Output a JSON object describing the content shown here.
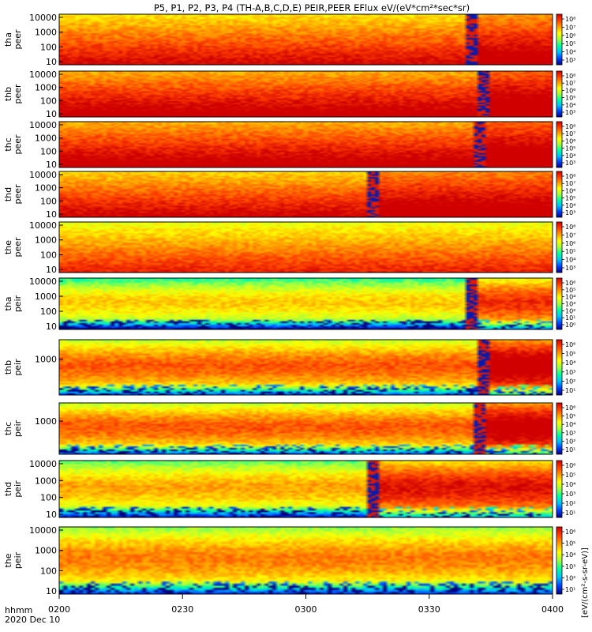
{
  "chart_data": {
    "type": "heatmap",
    "title": "P5, P1, P2, P3, P4 (TH-A,B,C,D,E) PEIR,PEER EFlux eV/(eV*cm²*sec*sr)",
    "xlabel": "hhmm",
    "date_label": "2020 Dec 10",
    "x_ticks": [
      "0200",
      "0230",
      "0300",
      "0330",
      "0400"
    ],
    "x_range_minutes": [
      0,
      120
    ],
    "colorbar_label": "[eV/(cm²-s-sr-eV)]",
    "colorscale": [
      "#000080",
      "#0040ff",
      "#00c0ff",
      "#00ffa0",
      "#a0ff40",
      "#ffff00",
      "#ffa000",
      "#ff4000",
      "#d00000"
    ],
    "panels": [
      {
        "probe": "tha",
        "instrument": "peer",
        "ylabel": "tha\npeer",
        "y_ticks": [
          "10000",
          "1000",
          "100",
          "10"
        ],
        "cbar_ticks": [
          "10⁸",
          "10⁷",
          "10⁶",
          "10⁵",
          "10⁴",
          "10³"
        ],
        "flux_level": 0.78,
        "transition_minute": 100
      },
      {
        "probe": "thb",
        "instrument": "peer",
        "ylabel": "thb\npeer",
        "y_ticks": [
          "10000",
          "1000",
          "100",
          "10"
        ],
        "cbar_ticks": [
          "10⁸",
          "10⁷",
          "10⁶",
          "10⁵",
          "10⁴",
          "10³"
        ],
        "flux_level": 0.85,
        "transition_minute": 103
      },
      {
        "probe": "thc",
        "instrument": "peer",
        "ylabel": "thc\npeer",
        "y_ticks": [
          "10000",
          "1000",
          "100",
          "10"
        ],
        "cbar_ticks": [
          "10⁸",
          "10⁷",
          "10⁶",
          "10⁵",
          "10⁴",
          "10³"
        ],
        "flux_level": 0.85,
        "transition_minute": 102
      },
      {
        "probe": "thd",
        "instrument": "peer",
        "ylabel": "thd\npeer",
        "y_ticks": [
          "10000",
          "1000",
          "100",
          "10"
        ],
        "cbar_ticks": [
          "10⁸",
          "10⁷",
          "10⁶",
          "10⁵",
          "10⁴",
          "10³"
        ],
        "flux_level": 0.8,
        "transition_minute": 76
      },
      {
        "probe": "the",
        "instrument": "peer",
        "ylabel": "the\npeer",
        "y_ticks": [
          "10000",
          "1000",
          "100",
          "10"
        ],
        "cbar_ticks": [
          "10⁸",
          "10⁷",
          "10⁶",
          "10⁵",
          "10⁴",
          "10³"
        ],
        "flux_level": 0.72,
        "transition_minute": 200
      },
      {
        "probe": "tha",
        "instrument": "peir",
        "ylabel": "tha\npeir",
        "y_ticks": [
          "10000",
          "1000",
          "100",
          "10"
        ],
        "cbar_ticks": [
          "10⁶",
          "10⁵",
          "10⁴",
          "10³",
          "10²",
          "10¹",
          "10⁰"
        ],
        "flux_level": 0.45,
        "transition_minute": 100
      },
      {
        "probe": "thb",
        "instrument": "peir",
        "ylabel": "thb\npeir",
        "y_ticks": [
          "1000"
        ],
        "cbar_ticks": [
          "10⁶",
          "10⁵",
          "10⁴",
          "10³",
          "10²",
          "10¹"
        ],
        "flux_level": 0.6,
        "transition_minute": 103
      },
      {
        "probe": "thc",
        "instrument": "peir",
        "ylabel": "thc\npeir",
        "y_ticks": [
          "1000"
        ],
        "cbar_ticks": [
          "10⁶",
          "10⁵",
          "10⁴",
          "10³",
          "10²",
          "10¹"
        ],
        "flux_level": 0.6,
        "transition_minute": 102
      },
      {
        "probe": "thd",
        "instrument": "peir",
        "ylabel": "thd\npeir",
        "y_ticks": [
          "10000",
          "1000",
          "100",
          "10"
        ],
        "cbar_ticks": [
          "10⁶",
          "10⁵",
          "10⁴",
          "10³",
          "10²",
          "10¹"
        ],
        "flux_level": 0.5,
        "transition_minute": 76
      },
      {
        "probe": "the",
        "instrument": "peir",
        "ylabel": "the\npeir",
        "y_ticks": [
          "10000",
          "1000",
          "100",
          "10"
        ],
        "cbar_ticks": [
          "10⁶",
          "10⁵",
          "10⁴",
          "10³",
          "10²",
          "10¹"
        ],
        "flux_level": 0.55,
        "transition_minute": 200
      }
    ]
  }
}
